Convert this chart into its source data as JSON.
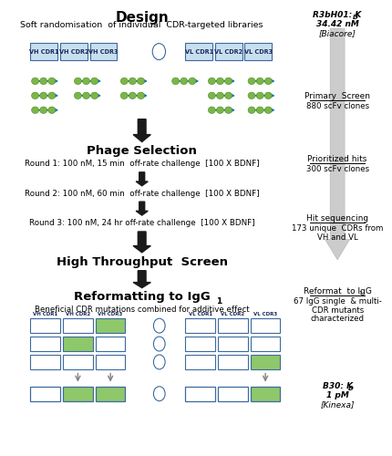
{
  "title": "Design",
  "subtitle": "Soft randomisation  of individual  CDR-targeted libraries",
  "fig_width": 4.3,
  "fig_height": 5.0,
  "bg_color": "#ffffff",
  "cdr_labels": [
    "VH CDR1",
    "VH CDR2",
    "VH CDR3",
    "VL CDR1",
    "VL CDR2",
    "VL CDR3"
  ],
  "phage_selection_title": "Phage Selection",
  "round1": "Round 1: 100 nM, 15 min  off-rate challenge  [100 X BDNF]",
  "round2": "Round 2: 100 nM, 60 min  off-rate challenge  [100 X BDNF]",
  "round3": "Round 3: 100 nM, 24 hr off-rate challenge  [100 X BDNF]",
  "hts_title": "High Throughput  Screen",
  "reformat_title": "Reformatting to IgG",
  "reformat_sub": "Beneficial CDR mutations combined for additive effect",
  "r3b_line1": "R3bH01: K",
  "r3b_sub": "D",
  "r3b_line2": " 34.42 nM",
  "r3b_line3": "[Biacore]",
  "ps_title": "Primary  Screen",
  "ps_sub": "880 scFv clones",
  "ph_title": "Prioritized hits",
  "ph_sub": "300 scFv clones",
  "hs_title": "Hit sequencing",
  "hs_sub1": "173 unique  CDRs from",
  "hs_sub2": "VH and VL",
  "rf_title": "Reformat  to IgG",
  "rf_sub": "1",
  "rf_line1": "67 IgG single  & multi-",
  "rf_line2": "CDR mutants",
  "rf_line3": "characterized",
  "b30_line1": "B30: K",
  "b30_sub": "D",
  "b30_line2": " 1 pM",
  "b30_line3": "[Kinexa]",
  "box_border": "#3a6a9f",
  "box_bg": "#c8dff0",
  "green_fill": "#8ec86a",
  "white_fill": "#ffffff",
  "dark_arrow": "#1a1a1a",
  "gray_arrow": "#c0c0c0",
  "phage_color": "#1a7ab0",
  "phage_green": "#7ab648"
}
